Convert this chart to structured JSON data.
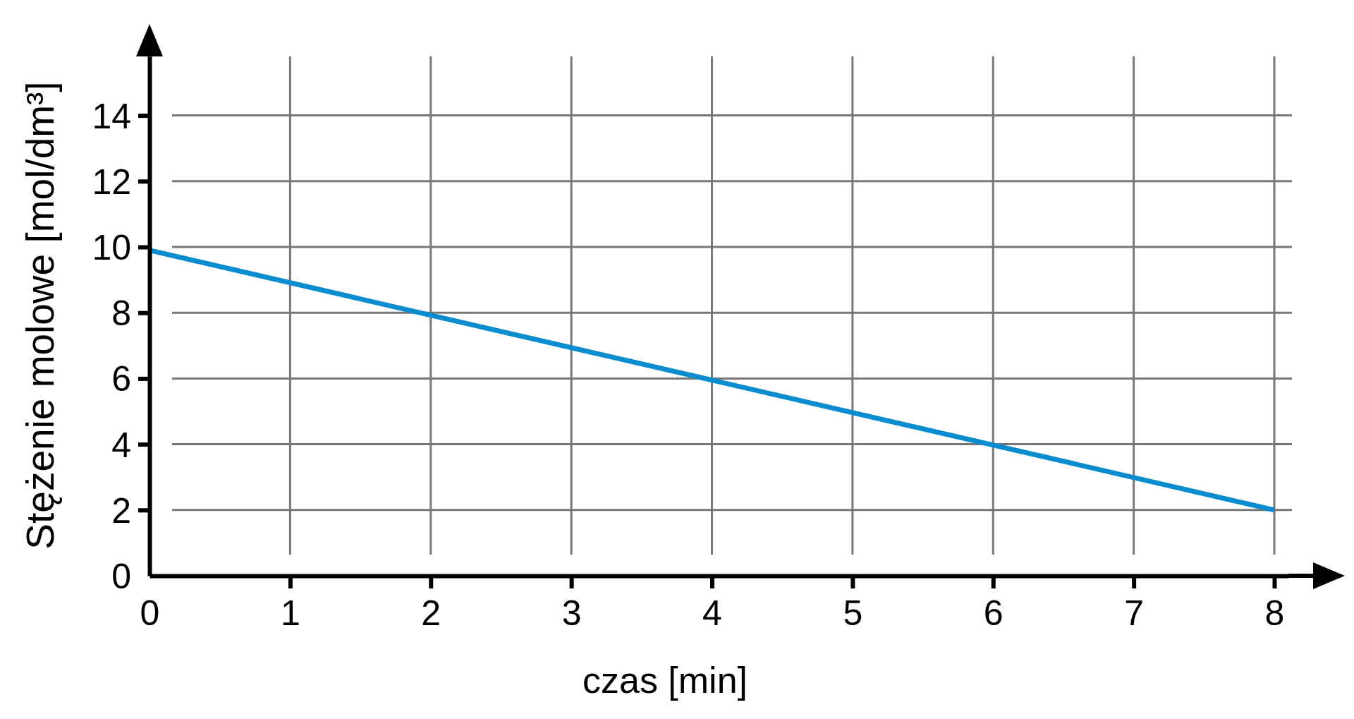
{
  "chart_data": {
    "type": "line",
    "xlabel": "czas [min]",
    "ylabel": "Stężenie molowe [mol/dm³]",
    "x": [
      0,
      8
    ],
    "series": [
      {
        "color": "#0a8ccf",
        "values": [
          9.9,
          2
        ]
      }
    ],
    "xlim": [
      0,
      8.1
    ],
    "ylim": [
      0,
      15.8
    ],
    "xticks": [
      0,
      1,
      2,
      3,
      4,
      5,
      6,
      7,
      8
    ],
    "yticks": [
      0,
      2,
      4,
      6,
      8,
      10,
      12,
      14
    ],
    "grid": true,
    "marker": "none",
    "line_style": "solid"
  }
}
